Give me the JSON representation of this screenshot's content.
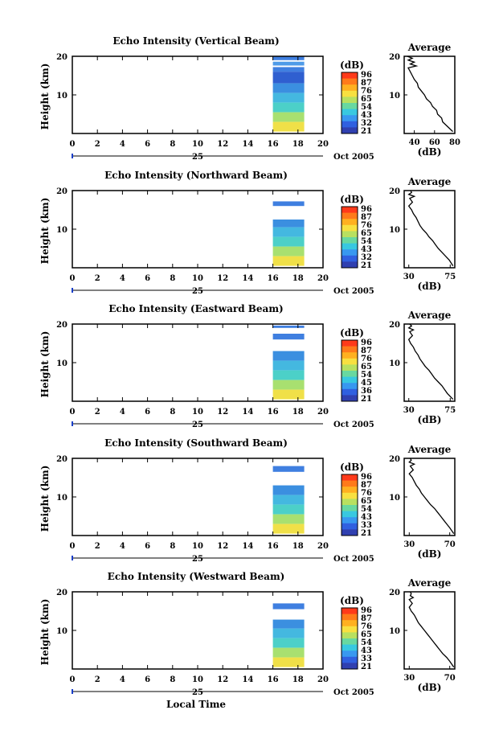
{
  "chart_data": [
    {
      "type": "heatmap",
      "title": "Echo Intensity (Vertical Beam)",
      "ylabel": "Height (km)",
      "y_ticks": [
        "10",
        "20"
      ],
      "x_ticks": [
        "0",
        "2",
        "4",
        "6",
        "8",
        "10",
        "12",
        "14",
        "16",
        "18",
        "20"
      ],
      "x_range": [
        0,
        20
      ],
      "y_range": [
        0,
        20
      ],
      "date_day": "25",
      "date_month": "Oct 2005",
      "colorbar_unit": "(dB)",
      "colorbar_ticks": [
        "96",
        "87",
        "76",
        "65",
        "54",
        "43",
        "32",
        "21"
      ],
      "data_time_range": [
        16.0,
        18.5
      ],
      "data_rows": [
        {
          "h": [
            19.0,
            20.0
          ],
          "color": "#3f7fe0"
        },
        {
          "h": [
            17.6,
            18.6
          ],
          "color": "#4f9be8"
        },
        {
          "h": [
            16.0,
            17.2
          ],
          "color": "#3f7fe0"
        },
        {
          "h": [
            13.0,
            16.0
          ],
          "color": "#2f5fd0"
        },
        {
          "h": [
            10.5,
            13.0
          ],
          "color": "#3b8fe0"
        },
        {
          "h": [
            8.0,
            10.5
          ],
          "color": "#44b8e0"
        },
        {
          "h": [
            5.5,
            8.0
          ],
          "color": "#4cd0c8"
        },
        {
          "h": [
            3.0,
            5.5
          ],
          "color": "#a8e070"
        },
        {
          "h": [
            0.5,
            3.0
          ],
          "color": "#f0e048"
        }
      ],
      "profile": {
        "title": "Average",
        "xlabel": "(dB)",
        "x_ticks": [
          "40",
          "60",
          "80"
        ],
        "x_range": [
          30,
          80
        ],
        "heights": [
          0.5,
          2,
          3,
          4,
          5,
          6,
          7,
          8,
          9,
          10,
          11,
          12,
          13,
          14,
          15,
          16,
          17,
          17.5,
          18,
          18.5,
          19,
          19.5,
          20
        ],
        "values": [
          78,
          72,
          68,
          67,
          63,
          62,
          58,
          56,
          52,
          50,
          47,
          44,
          43,
          40,
          38,
          36,
          34,
          42,
          36,
          40,
          34,
          38,
          33
        ]
      }
    },
    {
      "type": "heatmap",
      "title": "Echo Intensity (Northward Beam)",
      "ylabel": "Height (km)",
      "y_ticks": [
        "10",
        "20"
      ],
      "x_ticks": [
        "0",
        "2",
        "4",
        "6",
        "8",
        "10",
        "12",
        "14",
        "16",
        "18",
        "20"
      ],
      "x_range": [
        0,
        20
      ],
      "y_range": [
        0,
        20
      ],
      "date_day": "25",
      "date_month": "Oct 2005",
      "colorbar_unit": "(dB)",
      "colorbar_ticks": [
        "96",
        "87",
        "76",
        "65",
        "54",
        "43",
        "32",
        "21"
      ],
      "data_time_range": [
        16.0,
        18.5
      ],
      "data_rows": [
        {
          "h": [
            16.0,
            17.2
          ],
          "color": "#3f7fe0"
        },
        {
          "h": [
            10.5,
            12.5
          ],
          "color": "#3b8fe0"
        },
        {
          "h": [
            8.0,
            10.5
          ],
          "color": "#44b8e0"
        },
        {
          "h": [
            5.5,
            8.0
          ],
          "color": "#4cd0c8"
        },
        {
          "h": [
            3.0,
            5.5
          ],
          "color": "#a8e070"
        },
        {
          "h": [
            0.5,
            3.0
          ],
          "color": "#f0e048"
        }
      ],
      "profile": {
        "title": "Average",
        "xlabel": "(dB)",
        "x_ticks": [
          "30",
          "75"
        ],
        "x_range": [
          25,
          80
        ],
        "heights": [
          0.5,
          2,
          3,
          4,
          5,
          6,
          7,
          8,
          9,
          10,
          11,
          12,
          13,
          14,
          15,
          16,
          17,
          18,
          18.5,
          19,
          19.5,
          20
        ],
        "values": [
          78,
          74,
          70,
          66,
          62,
          59,
          56,
          52,
          49,
          45,
          42,
          40,
          38,
          35,
          33,
          30,
          34,
          31,
          36,
          30,
          33,
          32
        ]
      }
    },
    {
      "type": "heatmap",
      "title": "Echo Intensity (Eastward Beam)",
      "ylabel": "Height (km)",
      "y_ticks": [
        "10",
        "20"
      ],
      "x_ticks": [
        "0",
        "2",
        "4",
        "6",
        "8",
        "10",
        "12",
        "14",
        "16",
        "18",
        "20"
      ],
      "x_range": [
        0,
        20
      ],
      "y_range": [
        0,
        20
      ],
      "date_day": "25",
      "date_month": "Oct 2005",
      "colorbar_unit": "(dB)",
      "colorbar_ticks": [
        "96",
        "87",
        "76",
        "65",
        "54",
        "45",
        "36",
        "21"
      ],
      "data_time_range": [
        16.0,
        18.5
      ],
      "data_rows": [
        {
          "h": [
            19.0,
            19.6
          ],
          "color": "#3f7fe0"
        },
        {
          "h": [
            16.0,
            17.5
          ],
          "color": "#3f7fe0"
        },
        {
          "h": [
            10.5,
            13.0
          ],
          "color": "#3b8fe0"
        },
        {
          "h": [
            8.0,
            10.5
          ],
          "color": "#44b8e0"
        },
        {
          "h": [
            5.5,
            8.0
          ],
          "color": "#4cd0c8"
        },
        {
          "h": [
            3.0,
            5.5
          ],
          "color": "#a8e070"
        },
        {
          "h": [
            0.5,
            3.0
          ],
          "color": "#f0e048"
        }
      ],
      "profile": {
        "title": "Average",
        "xlabel": "(dB)",
        "x_ticks": [
          "30",
          "75"
        ],
        "x_range": [
          25,
          80
        ],
        "heights": [
          0.5,
          2,
          3,
          4,
          5,
          6,
          7,
          8,
          9,
          10,
          11,
          12,
          13,
          14,
          15,
          16,
          17,
          18,
          18.5,
          19,
          19.5,
          20
        ],
        "values": [
          78,
          72,
          69,
          66,
          62,
          58,
          55,
          52,
          48,
          45,
          42,
          40,
          37,
          35,
          32,
          30,
          34,
          31,
          35,
          30,
          33,
          31
        ]
      }
    },
    {
      "type": "heatmap",
      "title": "Echo Intensity (Southward Beam)",
      "ylabel": "Height (km)",
      "y_ticks": [
        "10",
        "20"
      ],
      "x_ticks": [
        "0",
        "2",
        "4",
        "6",
        "8",
        "10",
        "12",
        "14",
        "16",
        "18",
        "20"
      ],
      "x_range": [
        0,
        20
      ],
      "y_range": [
        0,
        20
      ],
      "date_day": "25",
      "date_month": "Oct 2005",
      "colorbar_unit": "(dB)",
      "colorbar_ticks": [
        "96",
        "87",
        "76",
        "65",
        "54",
        "43",
        "33",
        "21"
      ],
      "data_time_range": [
        16.0,
        18.5
      ],
      "data_rows": [
        {
          "h": [
            16.5,
            18.0
          ],
          "color": "#3f7fe0"
        },
        {
          "h": [
            10.5,
            13.0
          ],
          "color": "#3b8fe0"
        },
        {
          "h": [
            8.0,
            10.5
          ],
          "color": "#44b8e0"
        },
        {
          "h": [
            5.5,
            8.0
          ],
          "color": "#4cd0c8"
        },
        {
          "h": [
            3.0,
            5.5
          ],
          "color": "#a8e070"
        },
        {
          "h": [
            0.5,
            3.0
          ],
          "color": "#f0e048"
        }
      ],
      "profile": {
        "title": "Average",
        "xlabel": "(dB)",
        "x_ticks": [
          "30",
          "70"
        ],
        "x_range": [
          25,
          75
        ],
        "heights": [
          0.5,
          2,
          3,
          4,
          5,
          6,
          7,
          8,
          9,
          10,
          11,
          12,
          13,
          14,
          15,
          16,
          17,
          18,
          18.5,
          19,
          19.5,
          20
        ],
        "values": [
          74,
          70,
          67,
          64,
          61,
          58,
          55,
          51,
          48,
          45,
          42,
          40,
          37,
          35,
          33,
          30,
          34,
          31,
          35,
          30,
          32,
          31
        ]
      }
    },
    {
      "type": "heatmap",
      "title": "Echo Intensity (Westward Beam)",
      "ylabel": "Height (km)",
      "y_ticks": [
        "10",
        "20"
      ],
      "x_ticks": [
        "0",
        "2",
        "4",
        "6",
        "8",
        "10",
        "12",
        "14",
        "16",
        "18",
        "20"
      ],
      "x_range": [
        0,
        20
      ],
      "y_range": [
        0,
        20
      ],
      "date_day": "25",
      "date_month": "Oct 2005",
      "colorbar_unit": "(dB)",
      "colorbar_ticks": [
        "96",
        "87",
        "76",
        "65",
        "54",
        "43",
        "33",
        "21"
      ],
      "data_time_range": [
        16.0,
        18.5
      ],
      "data_rows": [
        {
          "h": [
            15.5,
            17.0
          ],
          "color": "#3f7fe0"
        },
        {
          "h": [
            10.5,
            12.8
          ],
          "color": "#3b8fe0"
        },
        {
          "h": [
            8.0,
            10.5
          ],
          "color": "#44b8e0"
        },
        {
          "h": [
            5.5,
            8.0
          ],
          "color": "#4cd0c8"
        },
        {
          "h": [
            3.0,
            5.5
          ],
          "color": "#a8e070"
        },
        {
          "h": [
            0.5,
            3.0
          ],
          "color": "#f0e048"
        }
      ],
      "profile": {
        "title": "Average",
        "xlabel": "(dB)",
        "x_ticks": [
          "30",
          "70"
        ],
        "x_range": [
          25,
          75
        ],
        "heights": [
          0.5,
          2,
          3,
          4,
          5,
          6,
          7,
          8,
          9,
          10,
          11,
          12,
          13,
          14,
          15,
          16,
          17,
          18,
          18.5,
          19,
          19.5,
          20
        ],
        "values": [
          74,
          70,
          67,
          63,
          60,
          57,
          54,
          51,
          48,
          45,
          42,
          39,
          37,
          35,
          32,
          30,
          33,
          30,
          34,
          31,
          32,
          31
        ]
      }
    }
  ],
  "bottom_xlabel": "Local Time",
  "colorbar_colors": [
    "#ff3a1a",
    "#ff7a1a",
    "#ffb020",
    "#f8e040",
    "#b8e060",
    "#68d8a0",
    "#38c8e0",
    "#3898f0",
    "#3060e0",
    "#3040b0"
  ]
}
